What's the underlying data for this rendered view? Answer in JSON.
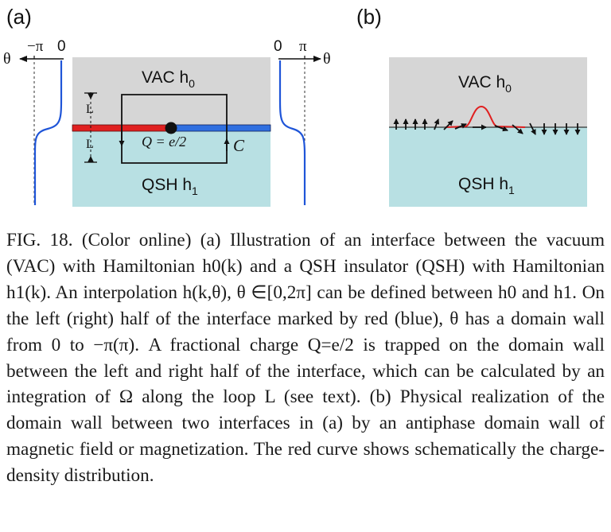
{
  "figure": {
    "panel_a": {
      "label": "(a)",
      "left_axis": {
        "theta": "θ",
        "minus_pi": "−π",
        "zero": "0"
      },
      "right_axis": {
        "zero": "0",
        "pi": "π",
        "theta": "θ"
      },
      "vac_label": "VAC h",
      "vac_sub": "0",
      "qsh_label": "QSH h",
      "qsh_sub": "1",
      "loop_L_upper": "L",
      "loop_L_lower": "L",
      "charge_label": "Q = e/2",
      "loop_C": "C",
      "colors": {
        "vacuum": "#d6d6d6",
        "qsh": "#b8e0e3",
        "left_interface": "#e02020",
        "right_interface": "#2f6fe0",
        "theta_curve": "#1f55d8"
      }
    },
    "panel_b": {
      "label": "(b)",
      "vac_label": "VAC h",
      "vac_sub": "0",
      "qsh_label": "QSH h",
      "qsh_sub": "1",
      "colors": {
        "charge_density": "#e02020",
        "arrows": "#111111"
      }
    }
  },
  "caption": {
    "text": "FIG. 18. (Color online) (a) Illustration of an interface between the vacuum (VAC) with Hamiltonian h0(k) and a QSH insulator (QSH) with Hamiltonian h1(k). An interpolation h(k,θ), θ ∈[0,2π] can be defined between h0 and h1. On the left (right) half of the interface marked by red (blue), θ has a domain wall from 0 to −π(π). A fractional charge Q=e/2 is trapped on the domain wall between the left and right half of the interface, which can be calculated by an integration of Ω along the loop L (see text). (b) Physical realization of the domain wall between two interfaces in (a) by an antiphase domain wall of magnetic field or magnetization. The red curve shows schematically the charge-density distribution."
  }
}
